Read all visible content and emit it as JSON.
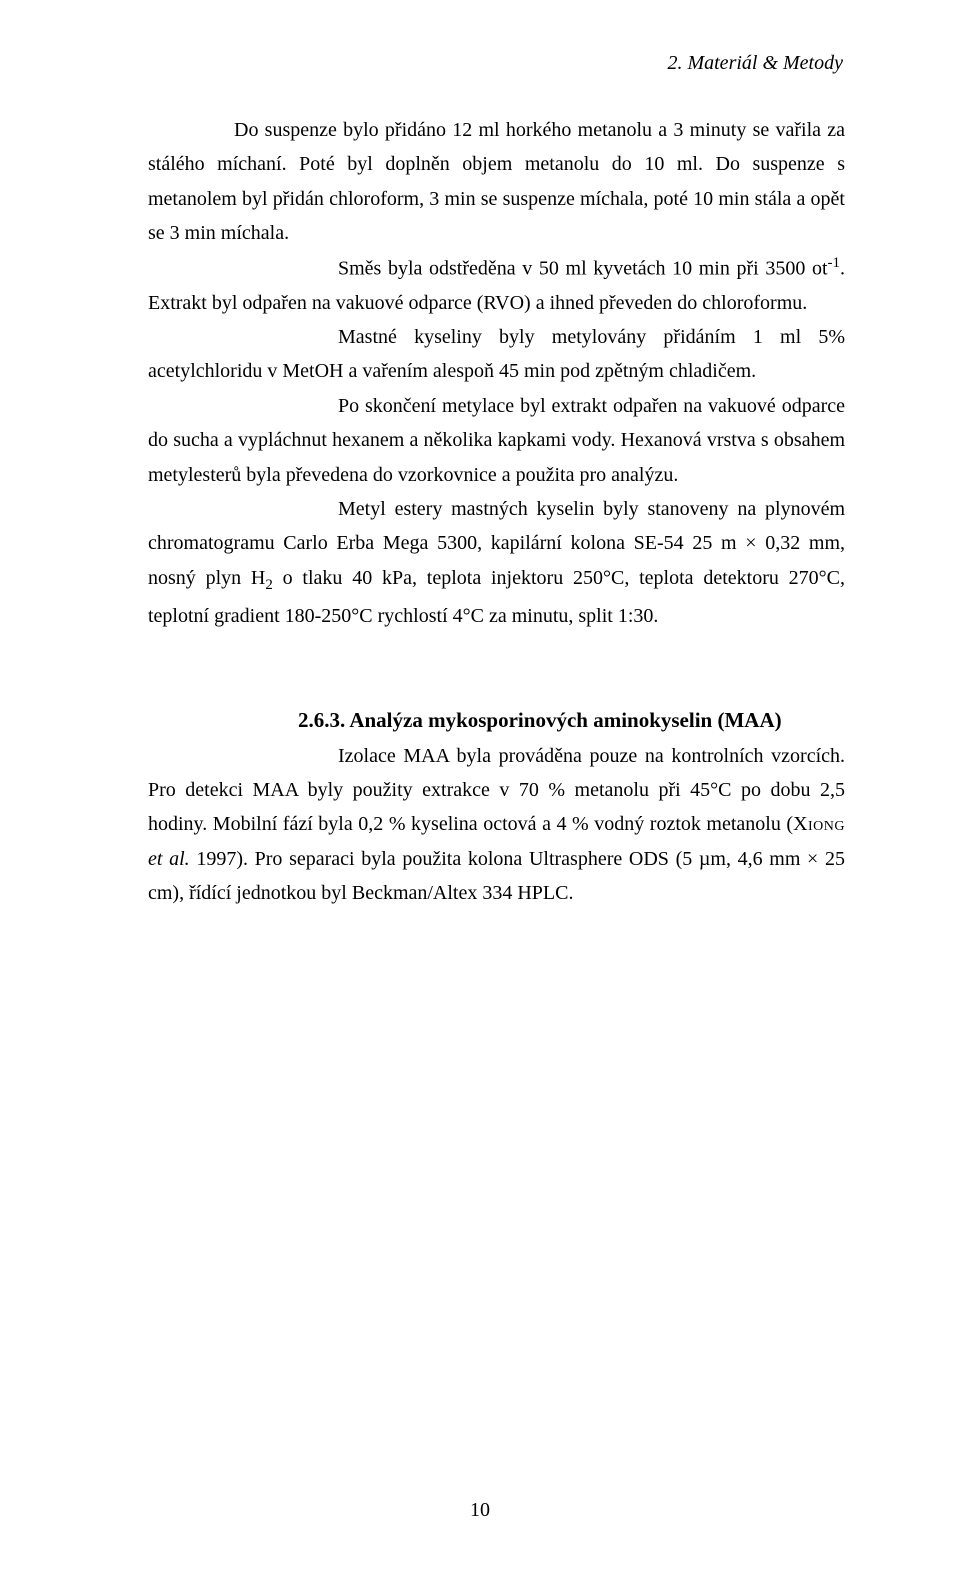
{
  "header": {
    "text": "2. Materiál & Metody"
  },
  "paragraphs": {
    "p1": "Do suspenze bylo přidáno 12 ml horkého metanolu a 3 minuty se vařila za stálého míchaní. Poté byl doplněn objem metanolu do 10 ml. Do suspenze s metanolem byl přidán chloroform, 3 min se suspenze míchala, poté 10 min stála a opět se 3 min míchala.",
    "p2a": "Směs byla odstředěna v 50 ml kyvetách 10 min při 3500 ot",
    "p2b": ". Extrakt byl odpařen na vakuové odparce (RVO) a ihned převeden do chloroformu.",
    "p3": "Mastné kyseliny byly metylovány přidáním 1 ml 5% acetylchloridu v MetOH a vařením alespoň 45 min pod zpětným chladičem.",
    "p4": "Po skončení metylace byl extrakt odpařen na vakuové odparce do sucha a vypláchnut hexanem a několika kapkami vody. Hexanová vrstva s obsahem metylesterů byla převedena do vzorkovnice a použita pro analýzu.",
    "p5a": "Metyl estery mastných kyselin byly stanoveny na plynovém chromatogramu Carlo Erba Mega 5300, kapilární kolona SE-54 25 m × 0,32 mm, nosný plyn H",
    "p5b": " o tlaku 40 kPa, teplota injektoru 250°C, teplota detektoru 270°C, teplotní gradient 180-250°C rychlostí 4°C za minutu, split 1:30."
  },
  "section": {
    "heading": "2.6.3. Analýza mykosporinových aminokyselin (MAA)",
    "p1": "Izolace MAA byla prováděna pouze na kontrolních vzorcích. Pro detekci MAA byly použity extrakce v 70 % metanolu při 45°C po dobu 2,5 hodiny. Mobilní fází byla 0,2 % kyselina octová a 4 % vodný roztok metanolu (",
    "xiong": "Xiong",
    "p1b": " et al.",
    "p1c": " 1997). Pro separaci byla použita kolona Ultrasphere ODS (5 µm, 4,6 mm × 25 cm), řídící jednotkou byl Beckman/Altex 334 HPLC."
  },
  "pageNumber": "10",
  "sup_neg1": "-1",
  "sub_2": "2"
}
